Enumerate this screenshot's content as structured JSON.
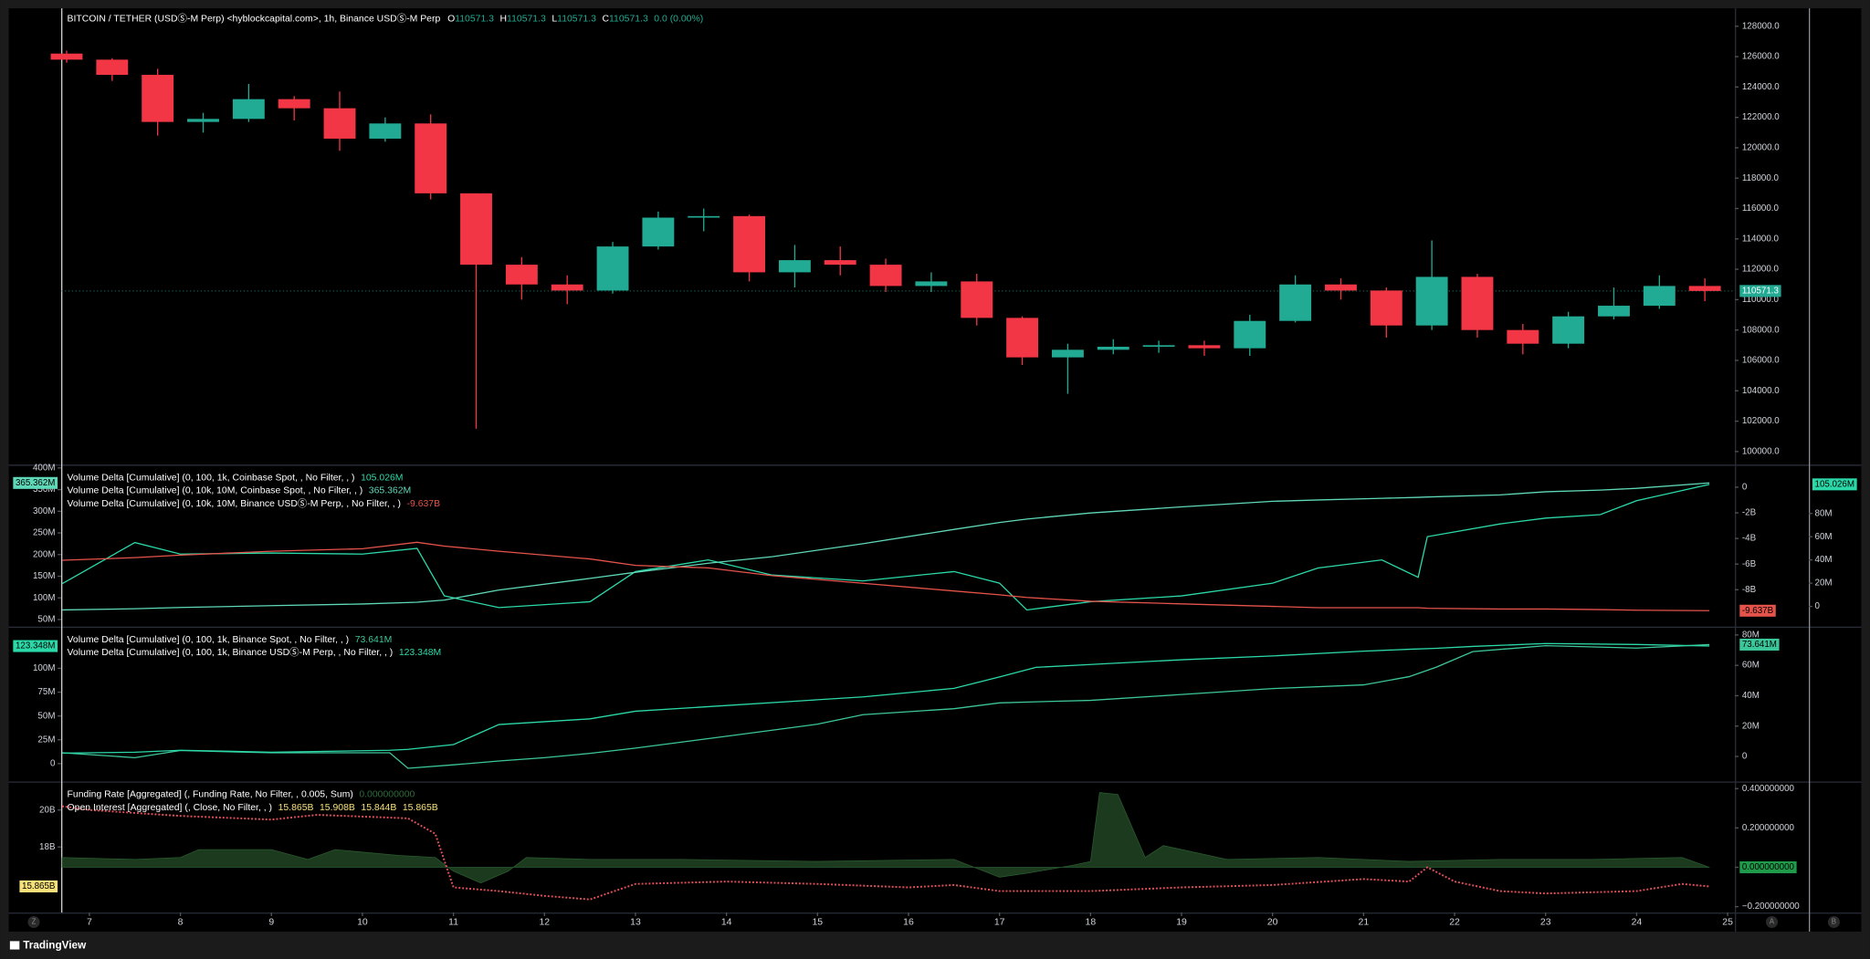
{
  "chart_data": [
    {
      "type": "candlestick",
      "title": "BITCOIN / TETHER (USDⓈ-M Perp) <hyblockcapital.com>, 1h, Binance USDⓈ-M Perp",
      "ohlc_legend": [
        {
          "key": "O",
          "value": 110571.3
        },
        {
          "key": "H",
          "value": 110571.3
        },
        {
          "key": "L",
          "value": 110571.3
        },
        {
          "key": "C",
          "value": 110571.3
        }
      ],
      "change": "0.0 (0.00%)",
      "up_color": "#22ab94",
      "down_color": "#f23645",
      "x": [
        6.75,
        7.25,
        7.75,
        8.25,
        8.75,
        9.25,
        9.75,
        10.25,
        10.75,
        11.25,
        11.75,
        12.25,
        12.75,
        13.25,
        13.75,
        14.25,
        14.75,
        15.25,
        15.75,
        16.25,
        16.75,
        17.25,
        17.75,
        18.25,
        18.75,
        19.25,
        19.75,
        20.25,
        20.75,
        21.25,
        21.75,
        22.25,
        22.75,
        23.25,
        23.75,
        24.25,
        24.75
      ],
      "open": [
        126200,
        125800,
        124800,
        121700,
        121900,
        123200,
        122600,
        120600,
        121600,
        117000,
        112300,
        111000,
        110600,
        113500,
        115400,
        115500,
        111800,
        112600,
        112300,
        110900,
        111200,
        108800,
        106200,
        106700,
        106900,
        107000,
        106800,
        108600,
        111000,
        110600,
        108300,
        111500,
        108000,
        107100,
        108900,
        109600,
        110900
      ],
      "high": [
        126400,
        125900,
        125200,
        122300,
        124200,
        123400,
        123700,
        122000,
        122200,
        117000,
        112800,
        111600,
        113800,
        115800,
        116000,
        115600,
        113600,
        113500,
        112700,
        111800,
        111700,
        108900,
        107100,
        107400,
        107300,
        107300,
        109000,
        111600,
        111400,
        110800,
        113900,
        111700,
        108400,
        109200,
        110800,
        111600,
        111400
      ],
      "low": [
        125600,
        124400,
        120800,
        121000,
        121700,
        121800,
        119800,
        120400,
        116600,
        101500,
        110000,
        109700,
        110400,
        113300,
        114500,
        111200,
        110800,
        111600,
        110500,
        110500,
        108300,
        105700,
        103800,
        106400,
        106500,
        106300,
        106300,
        108500,
        110000,
        107500,
        108000,
        107500,
        106400,
        106800,
        108700,
        109400,
        109900
      ],
      "close": [
        125800,
        124800,
        121700,
        121900,
        123200,
        122600,
        120600,
        121600,
        117000,
        112300,
        111000,
        110600,
        113500,
        115400,
        115500,
        111800,
        112600,
        112300,
        110900,
        111200,
        108800,
        106200,
        106700,
        106900,
        107000,
        106800,
        108600,
        111000,
        110600,
        108300,
        111500,
        108000,
        107100,
        108900,
        109600,
        110900,
        110571.3
      ],
      "ylim": [
        99140,
        129100
      ],
      "yticks": [
        {
          "value": 100000,
          "label": "100000.0"
        },
        {
          "value": 102000,
          "label": "102000.0"
        },
        {
          "value": 104000,
          "label": "104000.0"
        },
        {
          "value": 106000,
          "label": "106000.0"
        },
        {
          "value": 108000,
          "label": "108000.0"
        },
        {
          "value": 110000,
          "label": "110000.0"
        },
        {
          "value": 112000,
          "label": "112000.0"
        },
        {
          "value": 114000,
          "label": "114000.0"
        },
        {
          "value": 116000,
          "label": "116000.0"
        },
        {
          "value": 118000,
          "label": "118000.0"
        },
        {
          "value": 120000,
          "label": "120000.0"
        },
        {
          "value": 122000,
          "label": "122000.0"
        },
        {
          "value": 124000,
          "label": "124000.0"
        },
        {
          "value": 126000,
          "label": "126000.0"
        },
        {
          "value": 128000,
          "label": "128000.0"
        }
      ]
    },
    {
      "type": "line",
      "x": [
        6.7,
        7.5,
        8,
        9,
        10,
        10.6,
        10.9,
        11.5,
        12.5,
        13,
        13.8,
        14.5,
        15.5,
        16.5,
        17,
        17.3,
        18,
        19,
        20,
        20.5,
        21.2,
        21.6,
        21.7,
        22.5,
        23,
        23.6,
        24,
        24.8
      ],
      "series": [
        {
          "name": "Volume Delta [Cumulative] (0, 100, 1k, Coinbase Spot, , No Filter, , )",
          "color": "#2bd9a8",
          "axis": "y3",
          "last_label": "105.026M",
          "values": [
            19.5,
            55,
            45,
            46,
            45,
            50,
            9,
            -1,
            4,
            30,
            40,
            27,
            22,
            30,
            20,
            -3,
            4,
            9,
            20,
            33,
            40,
            25,
            60,
            71,
            76,
            79,
            91,
            105.026
          ]
        },
        {
          "name": "Volume Delta [Cumulative] (0, 10k, 10M, Coinbase Spot, , No Filter, , )",
          "color": "#5fd8b8",
          "axis": "y",
          "last_label": "365.362M",
          "values": [
            72,
            75,
            78,
            82,
            86,
            90,
            95,
            118,
            145,
            159,
            180,
            195,
            225,
            258,
            274,
            282,
            296,
            310,
            323,
            326,
            330,
            332,
            333,
            338,
            345,
            349,
            353,
            365.362
          ]
        },
        {
          "name": "Volume Delta [Cumulative] (0, 10k, 10M, Binance USDⓈ-M Perp, , No Filter, , )",
          "color": "#e5534b",
          "axis": "y2",
          "last_label": "-9.637B",
          "values": [
            -5.7,
            -5.5,
            -5.3,
            -5,
            -4.8,
            -4.3,
            -4.6,
            -5,
            -5.6,
            -6.1,
            -6.3,
            -6.9,
            -7.5,
            -8.1,
            -8.4,
            -8.6,
            -8.9,
            -9.1,
            -9.3,
            -9.4,
            -9.4,
            -9.4,
            -9.45,
            -9.5,
            -9.5,
            -9.55,
            -9.6,
            -9.637
          ]
        }
      ],
      "ylim": [
        33.6,
        405
      ],
      "yticks": [
        {
          "value": 50,
          "label": "50M"
        },
        {
          "value": 100,
          "label": "100M"
        },
        {
          "value": 150,
          "label": "150M"
        },
        {
          "value": 200,
          "label": "200M"
        },
        {
          "value": 250,
          "label": "250M"
        },
        {
          "value": 300,
          "label": "300M"
        },
        {
          "value": 350,
          "label": "350M"
        },
        {
          "value": 400,
          "label": "400M"
        }
      ],
      "y2lim": [
        -10.88,
        1.67
      ],
      "y2ticks": [
        0,
        {
          "value": -2,
          "label": "-2B"
        },
        {
          "value": -4,
          "label": "-4B"
        },
        {
          "value": -6,
          "label": "-6B"
        },
        {
          "value": -8,
          "label": "-8B"
        }
      ],
      "y3lim": [
        -17.4,
        121
      ],
      "y3ticks": [
        0,
        {
          "value": 20,
          "label": "20M"
        },
        {
          "value": 40,
          "label": "40M"
        },
        {
          "value": 60,
          "label": "60M"
        },
        {
          "value": 80,
          "label": "80M"
        }
      ]
    },
    {
      "type": "line",
      "x": [
        6.7,
        7.5,
        8,
        9,
        10.3,
        10.5,
        11,
        11.5,
        12,
        12.5,
        13,
        14,
        15,
        15.5,
        16.5,
        17,
        17.4,
        18,
        19,
        20,
        21,
        21.5,
        21.8,
        22.2,
        23,
        24,
        24.8
      ],
      "series": [
        {
          "name": "Volume Delta [Cumulative] (0, 100, 1k, Binance Spot, , No Filter, , )",
          "color": "#3cc79a",
          "axis": "y2",
          "last_label": "73.641M",
          "values": [
            2.4,
            -0.8,
            3.9,
            2.4,
            2.4,
            -7.8,
            -5.5,
            -3,
            -0.8,
            2,
            5.5,
            13.3,
            21.2,
            27.5,
            31.4,
            35.3,
            36,
            36.9,
            40.8,
            44.7,
            47.1,
            52.5,
            58.8,
            69,
            72.9,
            71.4,
            73.641
          ]
        },
        {
          "name": "Volume Delta [Cumulative] (0, 100, 1k, Binance USDⓈ-M Perp, , No Filter, , )",
          "color": "#2bd9a8",
          "axis": "y",
          "last_label": "123.348M",
          "values": [
            11,
            12,
            14,
            12,
            14,
            15,
            20,
            41,
            44,
            47,
            55,
            61,
            67,
            70,
            79,
            91,
            101,
            104,
            109,
            113,
            118,
            120,
            121,
            123,
            126,
            125,
            123.348
          ]
        }
      ],
      "ylim": [
        -18.75,
        142.5
      ],
      "yticks": [
        0,
        {
          "value": 25,
          "label": "25M"
        },
        {
          "value": 50,
          "label": "50M"
        },
        {
          "value": 75,
          "label": "75M"
        },
        {
          "value": 100,
          "label": "100M"
        }
      ],
      "y2lim": [
        -16.5,
        84.7
      ],
      "y2ticks": [
        0,
        {
          "value": 20,
          "label": "20M"
        },
        {
          "value": 40,
          "label": "40M"
        },
        {
          "value": 60,
          "label": "60M"
        },
        {
          "value": 80,
          "label": "80M"
        }
      ]
    },
    {
      "type": "area-line",
      "series": [
        {
          "name": "Funding Rate [Aggregated] (, Funding Rate, No Filter, , 0.005, Sum)",
          "kind": "area",
          "color": "#1c3a1e",
          "legend_color": "#2f6b3a",
          "label_color": "#1f9a4a",
          "axis": "y2",
          "last_label": "0.000000000",
          "x": [
            6.7,
            7.5,
            8,
            8.2,
            9,
            9.4,
            9.7,
            10.4,
            10.8,
            11,
            11.3,
            11.6,
            11.8,
            12.5,
            13.5,
            15,
            16.5,
            17,
            17.3,
            17.8,
            18,
            18.1,
            18.3,
            18.6,
            18.8,
            19.5,
            20.5,
            21.5,
            22.5,
            23.5,
            24.5,
            24.8
          ],
          "values": [
            0.05,
            0.04,
            0.05,
            0.09,
            0.09,
            0.04,
            0.09,
            0.06,
            0.05,
            -0.02,
            -0.08,
            -0.02,
            0.05,
            0.04,
            0.04,
            0.03,
            0.04,
            -0.05,
            -0.03,
            0.01,
            0.03,
            0.38,
            0.37,
            0.05,
            0.11,
            0.04,
            0.05,
            0.03,
            0.04,
            0.04,
            0.05,
            0
          ]
        },
        {
          "name": "Open Interest [Aggregated] (, Close, No Filter, , )",
          "kind": "dotted",
          "color": "#e0505a",
          "legend_color": "#f5e07a",
          "label_color": "#f5e07a",
          "axis": "y",
          "last_label": "15.865B",
          "legend_values": [
            15.865,
            15.908,
            15.844,
            15.865
          ],
          "legend_labels": [
            "15.865B",
            "15.908B",
            "15.844B",
            "15.865B"
          ],
          "x": [
            6.7,
            7,
            8,
            9,
            9.5,
            10.5,
            10.8,
            11,
            11.5,
            12,
            12.5,
            13,
            14,
            15,
            16,
            16.5,
            17,
            18,
            19,
            20,
            21,
            21.5,
            21.7,
            22,
            22.5,
            23,
            24,
            24.5,
            24.8
          ],
          "values": [
            20.2,
            20,
            19.68,
            19.48,
            19.74,
            19.55,
            18.71,
            15.81,
            15.61,
            15.35,
            15.16,
            16,
            16.13,
            16,
            15.81,
            15.94,
            15.61,
            15.61,
            15.81,
            15.94,
            16.26,
            16.13,
            16.9,
            16.13,
            15.61,
            15.48,
            15.61,
            16,
            15.865
          ]
        }
      ],
      "ylim": [
        14.45,
        21.48
      ],
      "yticks": [
        {
          "value": 18,
          "label": "18B"
        },
        {
          "value": 20,
          "label": "20B"
        }
      ],
      "y2lim": [
        -0.23,
        0.43
      ],
      "y2ticks": [
        {
          "value": 0.4,
          "label": "0.400000000"
        },
        {
          "value": 0.2,
          "label": "0.200000000"
        },
        {
          "value": 0,
          "label": "0.000000000"
        },
        {
          "value": -0.2,
          "label": "−0.200000000"
        }
      ]
    }
  ],
  "x_axis": {
    "xlim": [
      6.69,
      25.08
    ],
    "xticks": [
      7,
      8,
      9,
      10,
      11,
      12,
      13,
      14,
      15,
      16,
      17,
      18,
      19,
      20,
      21,
      22,
      23,
      24,
      25
    ]
  },
  "buttons": [
    "Z",
    "A",
    "B"
  ],
  "footer": {
    "brand": "TradingView"
  }
}
